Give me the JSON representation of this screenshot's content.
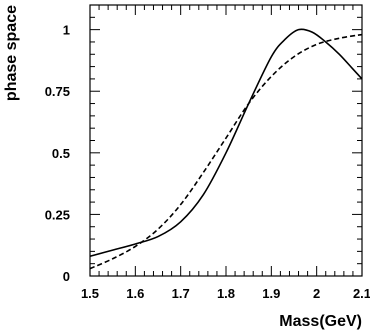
{
  "chart_data": {
    "type": "line",
    "title": "",
    "xlabel": "Mass(GeV)",
    "ylabel": "phase space",
    "xlim": [
      1.5,
      2.1
    ],
    "ylim": [
      0,
      1.1
    ],
    "x_ticks": [
      1.5,
      1.6,
      1.7,
      1.8,
      1.9,
      2.0,
      2.1
    ],
    "x_tick_labels": [
      "1.5",
      "1.6",
      "1.7",
      "1.8",
      "1.9",
      "2",
      "2.1"
    ],
    "y_ticks": [
      0,
      0.25,
      0.5,
      0.75,
      1.0
    ],
    "y_tick_labels": [
      "0",
      "0.25",
      "0.5",
      "0.75",
      "1"
    ],
    "grid": false,
    "legend": "none",
    "series": [
      {
        "style": "solid",
        "color": "#000000",
        "x": [
          1.5,
          1.55,
          1.6,
          1.65,
          1.7,
          1.75,
          1.8,
          1.85,
          1.9,
          1.93,
          1.96,
          1.99,
          2.02,
          2.05,
          2.08,
          2.1
        ],
        "y": [
          0.08,
          0.105,
          0.13,
          0.16,
          0.22,
          0.33,
          0.5,
          0.7,
          0.89,
          0.96,
          1.0,
          0.99,
          0.95,
          0.9,
          0.84,
          0.8
        ]
      },
      {
        "style": "dashed",
        "color": "#000000",
        "x": [
          1.5,
          1.55,
          1.6,
          1.65,
          1.7,
          1.75,
          1.8,
          1.85,
          1.9,
          1.95,
          2.0,
          2.05,
          2.1
        ],
        "y": [
          0.03,
          0.07,
          0.12,
          0.19,
          0.29,
          0.42,
          0.56,
          0.7,
          0.81,
          0.89,
          0.94,
          0.965,
          0.98
        ]
      }
    ]
  }
}
